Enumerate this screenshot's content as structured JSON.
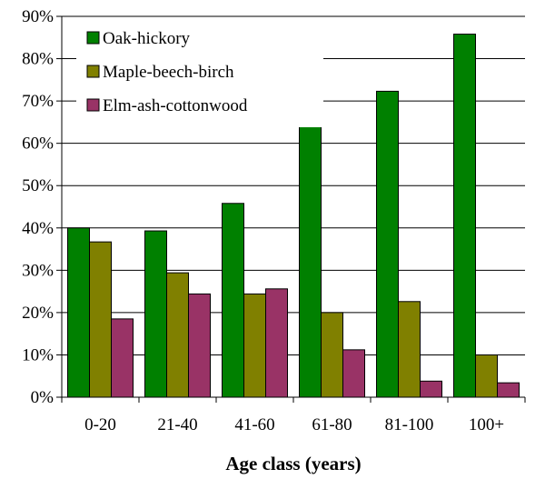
{
  "chart_data": {
    "type": "bar",
    "categories": [
      "0-20",
      "21-40",
      "41-60",
      "61-80",
      "81-100",
      "100+"
    ],
    "series": [
      {
        "name": "Oak-hickory",
        "color": "#008000",
        "values": [
          40,
          39.3,
          45.8,
          65,
          72.3,
          85.8
        ]
      },
      {
        "name": "Maple-beech-birch",
        "color": "#808000",
        "values": [
          36.7,
          29.4,
          24.4,
          20,
          22.6,
          10
        ]
      },
      {
        "name": "Elm-ash-cottonwood",
        "color": "#993366",
        "values": [
          18.5,
          24.4,
          25.6,
          11.2,
          3.8,
          3.4
        ]
      }
    ],
    "title": "",
    "xlabel": "Age class (years)",
    "ylabel": "",
    "ylim": [
      0,
      90
    ],
    "yticks": [
      "0%",
      "10%",
      "20%",
      "30%",
      "40%",
      "50%",
      "60%",
      "70%",
      "80%",
      "90%"
    ],
    "grid": true,
    "legend": "top-left"
  }
}
